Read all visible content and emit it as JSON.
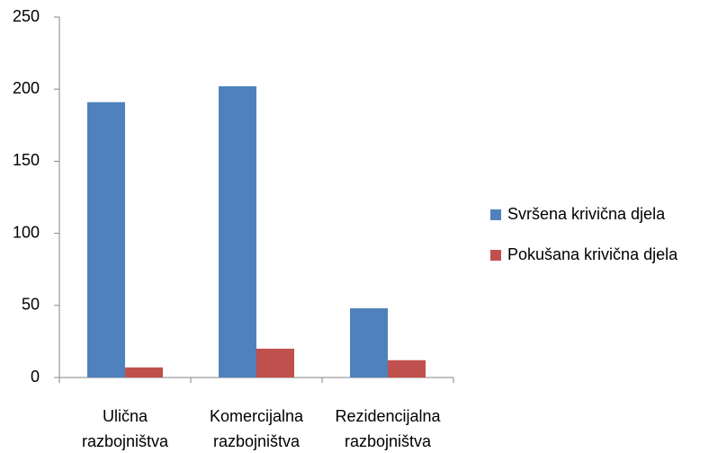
{
  "chart_data": {
    "type": "bar",
    "categories": [
      "Ulična razbojništva",
      "Komercijalna razbojništva",
      "Rezidencijalna razbojništva"
    ],
    "series": [
      {
        "name": "Svršena krivična djela",
        "color": "#4f81bd",
        "values": [
          191,
          202,
          48
        ]
      },
      {
        "name": "Pokušana krivična djela",
        "color": "#c0504d",
        "values": [
          7,
          20,
          12
        ]
      }
    ],
    "ylim": [
      0,
      250
    ],
    "yticks": [
      0,
      50,
      100,
      150,
      200,
      250
    ],
    "grid": false,
    "legend": "right"
  }
}
